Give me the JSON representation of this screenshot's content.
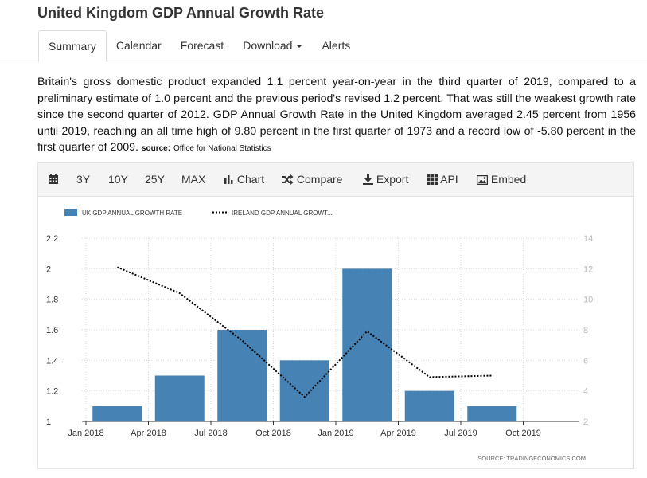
{
  "page_title": "United Kingdom GDP Annual Growth Rate",
  "tabs": [
    {
      "label": "Summary"
    },
    {
      "label": "Calendar"
    },
    {
      "label": "Forecast"
    },
    {
      "label": "Download"
    },
    {
      "label": "Alerts"
    }
  ],
  "description": "Britain's gross domestic product expanded 1.1 percent year-on-year in the third quarter of 2019, compared to a preliminary estimate of 1.0 percent and the previous period's revised 1.2 percent. That was still the weakest growth rate since the second quarter of 2012. GDP Annual Growth Rate in the United Kingdom averaged 2.45 percent from 1956 until 2019, reaching an all time high of 9.80 percent in the first quarter of 1973 and a record low of -5.80 percent in the first quarter of 2009.",
  "source_label": "source:",
  "source_value": "Office for National Statistics",
  "toolbar": {
    "range_3y": "3Y",
    "range_10y": "10Y",
    "range_25y": "25Y",
    "range_max": "MAX",
    "chart": "Chart",
    "compare": "Compare",
    "export": "Export",
    "api": "API",
    "embed": "Embed"
  },
  "chart_footer": "SOURCE:  TRADINGECONOMICS.COM",
  "colors": {
    "bar": "#4682b4",
    "line": "#000000",
    "grid": "#d9d9d9"
  },
  "chart_data": {
    "type": "bar",
    "x_ticks": [
      "Jan 2018",
      "Apr 2018",
      "Jul 2018",
      "Oct 2018",
      "Jan 2019",
      "Apr 2019",
      "Jul 2019",
      "Oct 2019"
    ],
    "categories": [
      "2018-Q1",
      "2018-Q2",
      "2018-Q3",
      "2018-Q4",
      "2019-Q1",
      "2019-Q2",
      "2019-Q3"
    ],
    "series": [
      {
        "name": "UK GDP ANNUAL GROWTH RATE",
        "type": "bar",
        "axis": "left",
        "values": [
          1.1,
          1.3,
          1.6,
          1.4,
          2.0,
          1.2,
          1.1
        ]
      },
      {
        "name": "IRELAND GDP ANNUAL GROWT...",
        "type": "line",
        "style": "dotted",
        "axis": "right",
        "values": [
          12.1,
          10.4,
          7.3,
          3.6,
          7.9,
          4.9,
          5.0
        ]
      }
    ],
    "ylim_left": [
      1,
      2.2
    ],
    "yticks_left": [
      "1",
      "1.2",
      "1.4",
      "1.6",
      "1.8",
      "2",
      "2.2"
    ],
    "ylim_right": [
      2,
      14
    ],
    "yticks_right": [
      "2",
      "4",
      "6",
      "8",
      "10",
      "12",
      "14"
    ],
    "grid": true,
    "legend_position": "top-left"
  }
}
